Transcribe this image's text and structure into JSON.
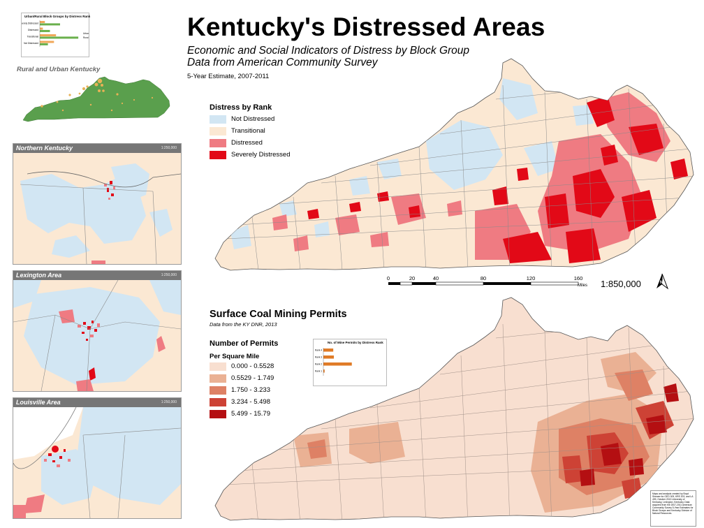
{
  "header": {
    "title": "Kentucky's Distressed Areas",
    "subtitle_line1": "Economic and Social Indicators of Distress by Block Group",
    "subtitle_line2": "Data from American Community Survey",
    "estimate": "5-Year Estimate, 2007-2011"
  },
  "colors": {
    "not_distressed": "#d2e6f3",
    "transitional": "#fbe8d3",
    "distressed": "#ef7b82",
    "severely_distressed": "#e20917",
    "rural": "#5a9f4d",
    "urban": "#e8b256",
    "mining_1": "#f8dfd0",
    "mining_2": "#eab194",
    "mining_3": "#de8165",
    "mining_4": "#cd4235",
    "mining_5": "#b40f12"
  },
  "distress_legend": {
    "title": "Distress by Rank",
    "items": [
      {
        "label": "Not Distressed"
      },
      {
        "label": "Transitional"
      },
      {
        "label": "Distressed"
      },
      {
        "label": "Severely Distressed"
      }
    ]
  },
  "rural_urban": {
    "label": "Rural and Urban Kentucky",
    "chart_title": "Urban/Rural Block Groups by Distress Rank"
  },
  "insets": [
    {
      "title": "Northern Kentucky",
      "scale": "1:250,000"
    },
    {
      "title": "Lexington Area",
      "scale": "1:250,000"
    },
    {
      "title": "Louisville Area",
      "scale": "1:250,000"
    }
  ],
  "scalebar": {
    "ticks": [
      "0",
      "20",
      "40",
      "80",
      "120",
      "160"
    ],
    "units": "Miles",
    "ratio": "1:850,000"
  },
  "mining": {
    "title": "Surface Coal Mining Permits",
    "subtitle": "Data from the KY DNR, 2013",
    "legend_title": "Number of Permits",
    "legend_subtitle": "Per Square Mile",
    "classes": [
      {
        "label": "0.000 - 0.5528"
      },
      {
        "label": "0.5529 - 1.749"
      },
      {
        "label": "1.750 - 3.233"
      },
      {
        "label": "3.234 - 5.498"
      },
      {
        "label": "5.499 - 15.79"
      }
    ],
    "chart_title": "No. of Mine Permits by Distress Rank"
  },
  "chart_data": [
    {
      "type": "bar",
      "title": "Urban/Rural Block Groups by Distress Rank",
      "categories": [
        "Severely Distressed",
        "Distressed",
        "Transitional",
        "Not Distressed"
      ],
      "series": [
        {
          "name": "Urban",
          "values": [
            25,
            15,
            80,
            70
          ]
        },
        {
          "name": "Rural",
          "values": [
            100,
            50,
            190,
            40
          ]
        }
      ]
    },
    {
      "type": "bar",
      "title": "No. of Mine Permits by Distress Rank",
      "categories": [
        "Rank 4",
        "Rank 3",
        "Rank 2",
        "Rank 1"
      ],
      "values": [
        1600,
        1700,
        4600,
        200
      ]
    }
  ],
  "credits": "Maps and analysis created by Boyd Shearer for GEO 309, KRE 203, and LA 493, October 2013 University of Kentucky, Lexington, Kentucky. Data acquired from the 2007-2011 American Community Survey 5-Year Estimates for Block Groups and Kentucky Division of Natural Resources."
}
